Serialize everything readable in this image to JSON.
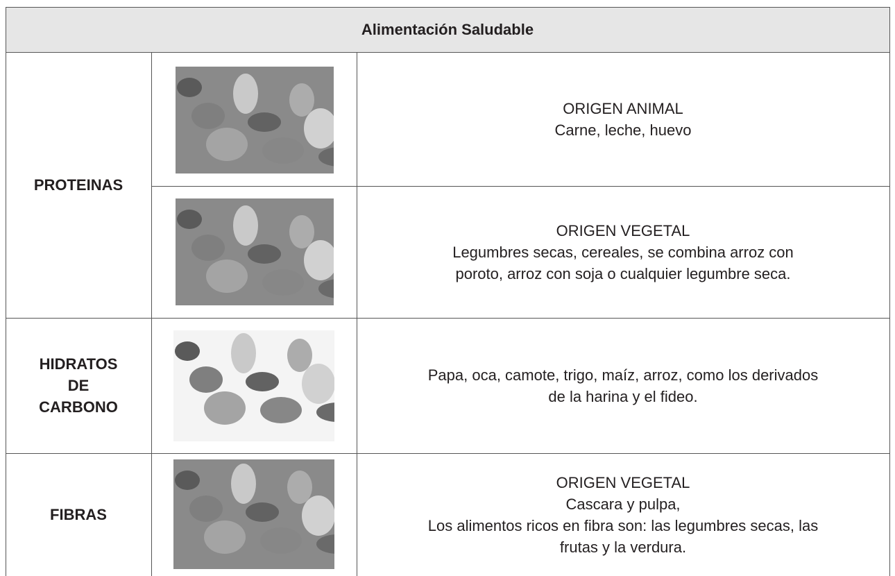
{
  "table": {
    "title": "Alimentación Saludable",
    "groups": [
      {
        "label": [
          "PROTEINAS"
        ],
        "items": [
          {
            "lines": [
              "ORIGEN ANIMAL",
              "Carne, leche, huevo"
            ]
          },
          {
            "lines": [
              "ORIGEN VEGETAL",
              "Legumbres secas, cereales, se combina arroz con",
              "poroto, arroz con soja o cualquier legumbre seca."
            ]
          }
        ]
      },
      {
        "label": [
          "HIDRATOS",
          "DE",
          "CARBONO"
        ],
        "items": [
          {
            "lines": [
              "Papa, oca, camote, trigo, maíz, arroz, como los derivados",
              "de la harina y el fideo."
            ]
          }
        ]
      },
      {
        "label": [
          "FIBRAS"
        ],
        "items": [
          {
            "lines": [
              "ORIGEN VEGETAL",
              "Cascara y pulpa,",
              "Los alimentos ricos en fibra son: las legumbres secas, las",
              "frutas y la verdura."
            ]
          }
        ]
      }
    ]
  }
}
